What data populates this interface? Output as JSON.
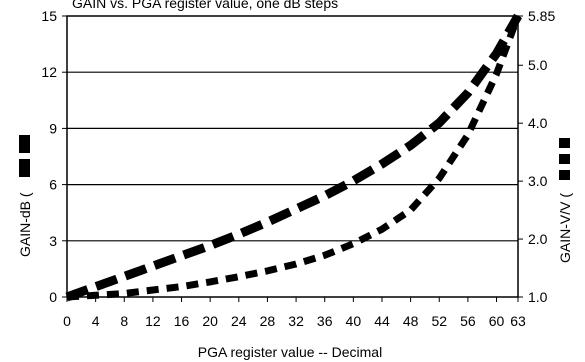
{
  "chart_data": {
    "type": "line",
    "title": "GAIN vs. PGA register value, one dB steps",
    "xlabel": "PGA register value -- Decimal",
    "ylabel_left": "GAIN-dB (",
    "ylabel_right": "GAIN-V/V (",
    "xlim": [
      0,
      63
    ],
    "ylim_left": [
      0,
      15
    ],
    "ylim_right": [
      1.0,
      5.85
    ],
    "x_ticks": [
      "0",
      "4",
      "8",
      "12",
      "16",
      "20",
      "24",
      "28",
      "32",
      "36",
      "40",
      "44",
      "48",
      "52",
      "56",
      "60",
      "63"
    ],
    "y_ticks_left": [
      "0",
      "3",
      "6",
      "9",
      "12",
      "15"
    ],
    "y_ticks_right": [
      "1.0",
      "2.0",
      "3.0",
      "4.0",
      "5.0",
      "5.85"
    ],
    "grid": "horizontal",
    "series": [
      {
        "axis": "left",
        "style": "long-dash",
        "x": [
          0,
          4,
          8,
          12,
          16,
          20,
          24,
          28,
          32,
          36,
          40,
          44,
          48,
          52,
          56,
          60,
          63
        ],
        "y": [
          0,
          0.55,
          1.1,
          1.65,
          2.2,
          2.75,
          3.35,
          4.0,
          4.7,
          5.4,
          6.2,
          7.1,
          8.1,
          9.3,
          10.9,
          13.0,
          15.0
        ]
      },
      {
        "axis": "right",
        "style": "short-dash",
        "x": [
          0,
          4,
          8,
          12,
          16,
          20,
          24,
          28,
          32,
          36,
          40,
          44,
          48,
          52,
          56,
          60,
          63
        ],
        "y": [
          1.0,
          1.03,
          1.06,
          1.12,
          1.18,
          1.26,
          1.35,
          1.45,
          1.57,
          1.72,
          1.92,
          2.17,
          2.5,
          3.05,
          3.8,
          4.85,
          5.85
        ]
      }
    ]
  }
}
